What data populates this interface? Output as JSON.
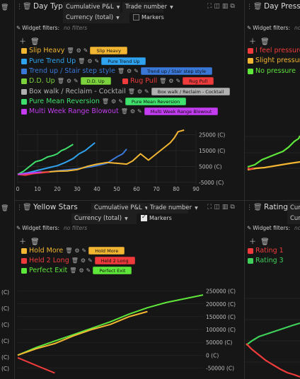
{
  "panels": {
    "day_type": {
      "title": "Day Type",
      "metric": "Cumulative P&L",
      "x_axis": "Trade number",
      "display": "Currency (total)",
      "markers_label": "Markers",
      "markers_on": false,
      "filters_label": "Widget filters:",
      "filters_value": "no filters",
      "series": [
        {
          "name": "Slip Heavy",
          "color": "#f2b632",
          "pill": "Slip Heavy"
        },
        {
          "name": "Pure Trend Up",
          "color": "#2fa3f0",
          "pill": "Pure Trend Up"
        },
        {
          "name": "Trend up / Stair step style",
          "color": "#3a78d8",
          "pill": "Trend up / Stair step style"
        },
        {
          "name": "D.D. Up",
          "color": "#7bd23c",
          "pill": "D.D. Up"
        },
        {
          "name": "Rug Pull",
          "color": "#ef3b3b",
          "pill": "Rug Pull"
        },
        {
          "name": "Box walk / Reclaim - Cocktail",
          "color": "#b0b0b0",
          "pill": "Box walk / Reclaim - Cocktail"
        },
        {
          "name": "Pure Mean Reversion",
          "color": "#3fe06b",
          "pill": "Pure Mean Reversion"
        },
        {
          "name": "Multi Week Range Blowout",
          "color": "#c33cf0",
          "pill": "Multi Week Range Blowout"
        }
      ],
      "chart_data": {
        "type": "line",
        "x_ticks": [
          "0",
          "10",
          "20",
          "30",
          "40",
          "50",
          "60",
          "70",
          "80",
          "90"
        ],
        "y_ticks": [
          "25000 (C)",
          "15000 (C)",
          "5000 (C)",
          "-5000 (C)"
        ],
        "xlim": [
          0,
          90
        ],
        "ylim": [
          -6000,
          28000
        ],
        "series": [
          {
            "name": "Pure Mean Reversion",
            "color": "#3fe06b",
            "x": [
              0,
              3,
              6,
              9,
              12,
              15,
              18,
              20,
              22,
              24,
              26,
              28
            ],
            "y": [
              0,
              2000,
              5000,
              8000,
              9000,
              11000,
              12000,
              13000,
              15000,
              16000,
              17500,
              19000
            ]
          },
          {
            "name": "Pure Trend Up",
            "color": "#2fa3f0",
            "x": [
              0,
              5,
              10,
              15,
              20,
              24,
              28,
              31,
              34,
              37,
              39
            ],
            "y": [
              0,
              1000,
              2500,
              4000,
              5500,
              7500,
              10000,
              13000,
              15000,
              18000,
              20000
            ]
          },
          {
            "name": "Trend up / Stair step style",
            "color": "#3a78d8",
            "x": [
              0,
              8,
              15,
              22,
              30,
              38,
              45,
              50,
              53,
              55
            ],
            "y": [
              0,
              1000,
              1500,
              2500,
              3500,
              5000,
              7000,
              11000,
              13000,
              16000
            ]
          },
          {
            "name": "Slip Heavy",
            "color": "#f2b632",
            "x": [
              0,
              5,
              10,
              15,
              20,
              25,
              30,
              35,
              40,
              45,
              50,
              55,
              58,
              62,
              66,
              70,
              74,
              77,
              79,
              81,
              84
            ],
            "y": [
              0,
              500,
              1000,
              1500,
              2000,
              2200,
              3000,
              5000,
              6500,
              7500,
              7000,
              6500,
              8500,
              13000,
              9000,
              13000,
              17000,
              20000,
              23000,
              27000,
              28000
            ]
          },
          {
            "name": "Rug Pull",
            "color": "#ef3b3b",
            "x": [
              0,
              4,
              8,
              12,
              16
            ],
            "y": [
              0,
              -500,
              500,
              1000,
              1500
            ]
          },
          {
            "name": "Multi Week Range Blowout",
            "color": "#c33cf0",
            "x": [
              0,
              4,
              8,
              12
            ],
            "y": [
              0,
              500,
              1000,
              1500
            ]
          }
        ]
      }
    },
    "yellow_stars": {
      "title": "Yellow Stars",
      "metric": "Cumulative P&L",
      "x_axis": "Trade number",
      "display": "Currency (total)",
      "markers_label": "Markers",
      "markers_on": true,
      "filters_label": "Widget filters:",
      "filters_value": "no filters",
      "series": [
        {
          "name": "Hold More",
          "color": "#f2b632",
          "pill": "Hold More"
        },
        {
          "name": "Held 2 Long",
          "color": "#ef3b3b",
          "pill": "Held 2 Long"
        },
        {
          "name": "Perfect Exit",
          "color": "#5ee63a",
          "pill": "Perfect Exit"
        }
      ],
      "chart_data": {
        "type": "line",
        "y_ticks": [
          "250000 (C)",
          "200000 (C)",
          "150000 (C)",
          "100000 (C)",
          "50000 (C)",
          "0 (C)",
          "-50000 (C)"
        ],
        "ylim": [
          -60000,
          260000
        ],
        "xlim": [
          0,
          100
        ],
        "series": [
          {
            "name": "Perfect Exit",
            "color": "#5ee63a",
            "x": [
              0,
              10,
              20,
              30,
              40,
              50,
              60,
              70,
              80,
              90,
              100
            ],
            "y": [
              0,
              30000,
              55000,
              80000,
              105000,
              130000,
              160000,
              185000,
              205000,
              220000,
              235000
            ]
          },
          {
            "name": "Hold More",
            "color": "#f2b632",
            "x": [
              0,
              10,
              20,
              30,
              40,
              50,
              60,
              70
            ],
            "y": [
              0,
              25000,
              45000,
              75000,
              100000,
              120000,
              150000,
              170000
            ]
          },
          {
            "name": "Held 2 Long",
            "color": "#ef3b3b",
            "x": [
              0,
              5,
              10,
              15,
              20
            ],
            "y": [
              -10000,
              -25000,
              -40000,
              -55000,
              -70000
            ]
          }
        ]
      }
    },
    "day_pressure": {
      "title": "Day Pressure",
      "filters_label": "Widget filters:",
      "filters_value": "no filters",
      "series": [
        {
          "name": "I feel pressure",
          "color": "#ef3b3b"
        },
        {
          "name": "Slight pressure",
          "color": "#f2b632"
        },
        {
          "name": "No pressure",
          "color": "#5ee63a"
        }
      ]
    },
    "rating": {
      "title": "Rating",
      "select_stub": "Curr",
      "filters_label": "Widget filters:",
      "filters_value": "no filters",
      "series": [
        {
          "name": "Rating 1",
          "color": "#ef3b3b"
        },
        {
          "name": "Rating 3",
          "color": "#3fcf5a"
        }
      ]
    },
    "left_stub": {
      "y_ticks": [
        "(C)",
        "(C)",
        "(C)",
        "(C)",
        "(C)",
        "(C)",
        "(C)",
        "(C)"
      ]
    }
  }
}
